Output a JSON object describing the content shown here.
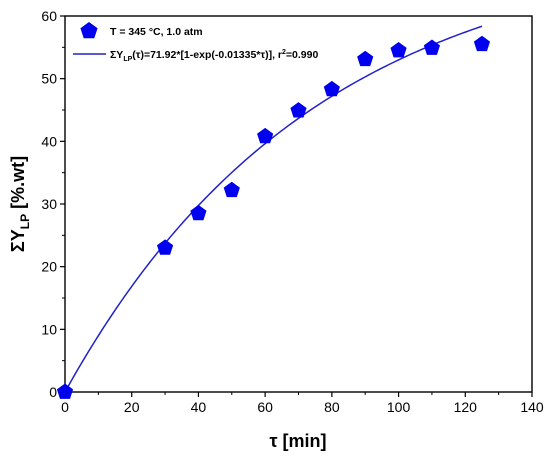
{
  "chart_data": {
    "type": "scatter",
    "x_label_parts": {
      "main": "τ",
      "rest": " [min]"
    },
    "y_label_parts": {
      "main": "ΣY",
      "sub": "LP",
      "rest": " [%.wt]"
    },
    "xlim": [
      0,
      140
    ],
    "ylim": [
      0,
      60
    ],
    "x_ticks": [
      "0",
      "20",
      "40",
      "60",
      "80",
      "100",
      "120",
      "140"
    ],
    "y_ticks": [
      "0",
      "10",
      "20",
      "30",
      "40",
      "50",
      "60"
    ],
    "grid": false,
    "legend_position": "top-left",
    "marker_color": "#0000ee",
    "line_color": "#2020cc",
    "series": [
      {
        "name": "T = 345 °C, 1.0 atm",
        "kind": "markers",
        "marker": "pentagon",
        "x": [
          0,
          30,
          40,
          50,
          60,
          70,
          80,
          90,
          100,
          110,
          125
        ],
        "y": [
          0,
          23.0,
          28.5,
          32.2,
          40.8,
          44.9,
          48.3,
          53.1,
          54.5,
          54.9,
          55.5
        ]
      },
      {
        "name_parts": {
          "pre": "ΣY",
          "sub": "LP",
          "post": "(τ)=71.92*[1-exp(-0.01335*τ)], r",
          "sup": "2",
          "end": "=0.990"
        },
        "kind": "fit",
        "fit": {
          "a": 71.92,
          "k": 0.01335,
          "x_range": [
            0,
            125
          ]
        }
      }
    ]
  }
}
